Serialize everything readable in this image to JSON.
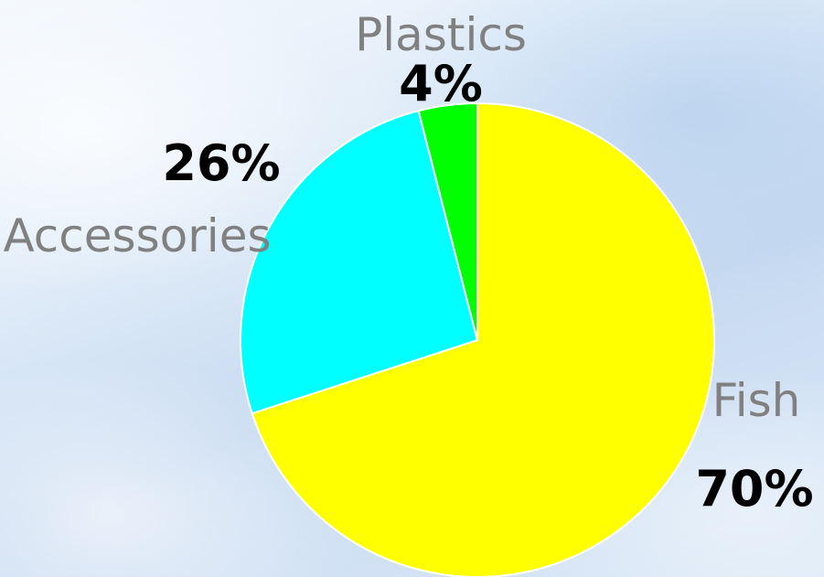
{
  "chart_data": {
    "type": "pie",
    "slices": [
      {
        "label": "Fish",
        "value": 70,
        "value_label": "70%",
        "color": "#ffff00"
      },
      {
        "label": "Accessories",
        "value": 26,
        "value_label": "26%",
        "color": "#00ffff"
      },
      {
        "label": "Plastics",
        "value": 4,
        "value_label": "4%",
        "color": "#00ff00"
      }
    ],
    "start_angle": "12 o'clock",
    "direction": "clockwise",
    "legend": "none"
  }
}
